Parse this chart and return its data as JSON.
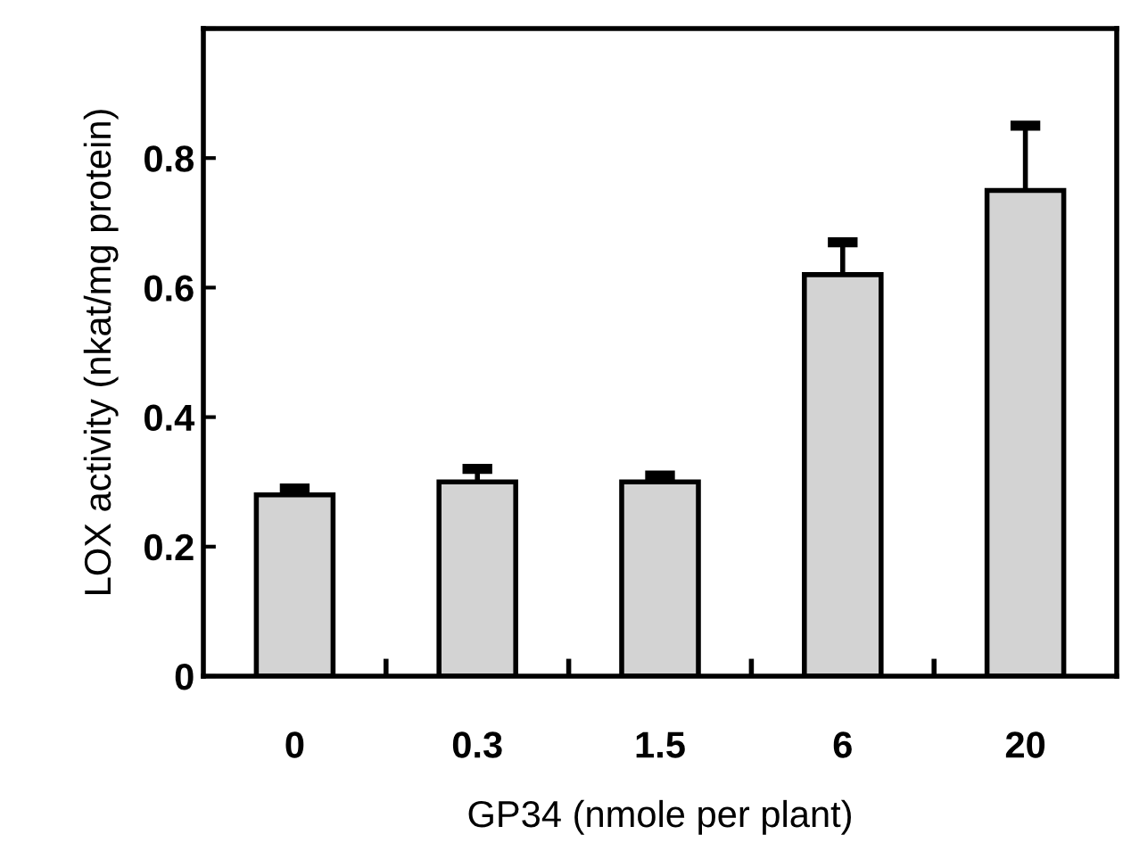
{
  "chart_data": {
    "type": "bar",
    "xlabel": "GP34 (nmole per plant)",
    "ylabel": "LOX activity (nkat/mg protein)",
    "categories": [
      "0",
      "0.3",
      "1.5",
      "6",
      "20"
    ],
    "values": [
      0.28,
      0.3,
      0.3,
      0.62,
      0.75
    ],
    "errors": [
      0.01,
      0.02,
      0.01,
      0.05,
      0.1
    ],
    "color": "#d3d3d3",
    "ylim": [
      0,
      1.0
    ],
    "yticks": [
      0,
      0.2,
      0.4,
      0.6,
      0.8,
      {
        "value": 1.0,
        "label": null
      }
    ],
    "grid": false
  }
}
